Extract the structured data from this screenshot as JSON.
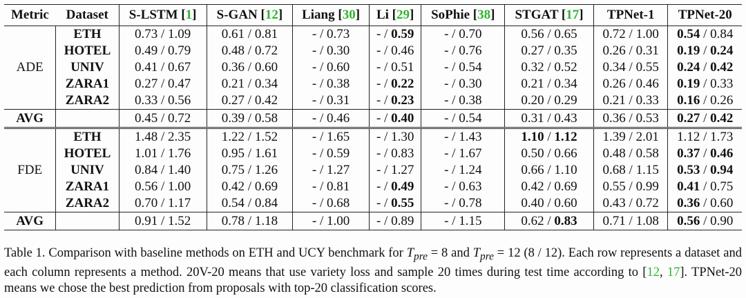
{
  "headers": [
    {
      "text": "Metric"
    },
    {
      "text": "Dataset"
    },
    {
      "text": "S-LSTM [",
      "ref": "1",
      "after": "]"
    },
    {
      "text": "S-GAN [",
      "ref": "12",
      "after": "]"
    },
    {
      "text": "Liang [",
      "ref": "30",
      "after": "]"
    },
    {
      "text": "Li [",
      "ref": "29",
      "after": "]"
    },
    {
      "text": "SoPhie [",
      "ref": "38",
      "after": "]"
    },
    {
      "text": "STGAT [",
      "ref": "17",
      "after": "]"
    },
    {
      "text": "TPNet-1"
    },
    {
      "text": "TPNet-20"
    }
  ],
  "groups": [
    {
      "metric": "ADE",
      "rows": [
        {
          "dataset": "ETH",
          "cells": [
            {
              "a": "0.73",
              "b": "1.09"
            },
            {
              "a": "0.61",
              "b": "0.81"
            },
            {
              "a": "-",
              "b": "0.73"
            },
            {
              "a": "-",
              "b": "0.59",
              "bb": true
            },
            {
              "a": "-",
              "b": "0.70"
            },
            {
              "a": "0.56",
              "b": "0.65"
            },
            {
              "a": "0.72",
              "b": "1.00"
            },
            {
              "a": "0.54",
              "b": "0.84",
              "ab": true
            }
          ]
        },
        {
          "dataset": "HOTEL",
          "cells": [
            {
              "a": "0.49",
              "b": "0.79"
            },
            {
              "a": "0.48",
              "b": "0.72"
            },
            {
              "a": "-",
              "b": "0.30"
            },
            {
              "a": "-",
              "b": "0.46"
            },
            {
              "a": "-",
              "b": "0.76"
            },
            {
              "a": "0.27",
              "b": "0.35"
            },
            {
              "a": "0.26",
              "b": "0.31"
            },
            {
              "a": "0.19",
              "b": "0.24",
              "ab": true,
              "bb": true
            }
          ]
        },
        {
          "dataset": "UNIV",
          "cells": [
            {
              "a": "0.41",
              "b": "0.67"
            },
            {
              "a": "0.36",
              "b": "0.60"
            },
            {
              "a": "-",
              "b": "0.60"
            },
            {
              "a": "-",
              "b": "0.51"
            },
            {
              "a": "-",
              "b": "0.54"
            },
            {
              "a": "0.32",
              "b": "0.52"
            },
            {
              "a": "0.34",
              "b": "0.55"
            },
            {
              "a": "0.24",
              "b": "0.42",
              "ab": true,
              "bb": true
            }
          ]
        },
        {
          "dataset": "ZARA1",
          "cells": [
            {
              "a": "0.27",
              "b": "0.47"
            },
            {
              "a": "0.21",
              "b": "0.34"
            },
            {
              "a": "-",
              "b": "0.38"
            },
            {
              "a": "-",
              "b": "0.22",
              "bb": true
            },
            {
              "a": "-",
              "b": "0.30"
            },
            {
              "a": "0.21",
              "b": "0.34"
            },
            {
              "a": "0.26",
              "b": "0.46"
            },
            {
              "a": "0.19",
              "b": "0.33",
              "ab": true
            }
          ]
        },
        {
          "dataset": "ZARA2",
          "cells": [
            {
              "a": "0.33",
              "b": "0.56"
            },
            {
              "a": "0.27",
              "b": "0.42"
            },
            {
              "a": "-",
              "b": "0.31"
            },
            {
              "a": "-",
              "b": "0.23",
              "bb": true
            },
            {
              "a": "-",
              "b": "0.38"
            },
            {
              "a": "0.20",
              "b": "0.29"
            },
            {
              "a": "0.21",
              "b": "0.33"
            },
            {
              "a": "0.16",
              "b": "0.26",
              "ab": true
            }
          ]
        }
      ],
      "avg": {
        "label": "AVG",
        "cells": [
          {
            "a": "0.45",
            "b": "0.72"
          },
          {
            "a": "0.39",
            "b": "0.58"
          },
          {
            "a": "-",
            "b": "0.46"
          },
          {
            "a": "-",
            "b": "0.40",
            "bb": true
          },
          {
            "a": "-",
            "b": "0.54"
          },
          {
            "a": "0.31",
            "b": "0.43"
          },
          {
            "a": "0.36",
            "b": "0.53"
          },
          {
            "a": "0.27",
            "b": "0.42",
            "ab": true,
            "bb": true
          }
        ]
      }
    },
    {
      "metric": "FDE",
      "rows": [
        {
          "dataset": "ETH",
          "cells": [
            {
              "a": "1.48",
              "b": "2.35"
            },
            {
              "a": "1.22",
              "b": "1.52"
            },
            {
              "a": "-",
              "b": "1.65"
            },
            {
              "a": "-",
              "b": "1.30"
            },
            {
              "a": "-",
              "b": "1.43"
            },
            {
              "a": "1.10",
              "b": "1.12",
              "ab": true,
              "bb": true
            },
            {
              "a": "1.39",
              "b": "2.01"
            },
            {
              "a": "1.12",
              "b": "1.73"
            }
          ]
        },
        {
          "dataset": "HOTEL",
          "cells": [
            {
              "a": "1.01",
              "b": "1.76"
            },
            {
              "a": "0.95",
              "b": "1.61"
            },
            {
              "a": "-",
              "b": "0.59"
            },
            {
              "a": "-",
              "b": "0.83"
            },
            {
              "a": "-",
              "b": "1.67"
            },
            {
              "a": "0.50",
              "b": "0.66"
            },
            {
              "a": "0.48",
              "b": "0.58"
            },
            {
              "a": "0.37",
              "b": "0.46",
              "ab": true,
              "bb": true
            }
          ]
        },
        {
          "dataset": "UNIV",
          "cells": [
            {
              "a": "0.84",
              "b": "1.40"
            },
            {
              "a": "0.75",
              "b": "1.26"
            },
            {
              "a": "-",
              "b": "1.27"
            },
            {
              "a": "-",
              "b": "1.27"
            },
            {
              "a": "-",
              "b": "1.24"
            },
            {
              "a": "0.66",
              "b": "1.10"
            },
            {
              "a": "0.68",
              "b": "1.15"
            },
            {
              "a": "0.53",
              "b": "0.94",
              "ab": true,
              "bb": true
            }
          ]
        },
        {
          "dataset": "ZARA1",
          "cells": [
            {
              "a": "0.56",
              "b": "1.00"
            },
            {
              "a": "0.42",
              "b": "0.69"
            },
            {
              "a": "-",
              "b": "0.81"
            },
            {
              "a": "-",
              "b": "0.49",
              "bb": true
            },
            {
              "a": "-",
              "b": "0.63"
            },
            {
              "a": "0.42",
              "b": "0.69"
            },
            {
              "a": "0.55",
              "b": "0.99"
            },
            {
              "a": "0.41",
              "b": "0.75",
              "ab": true
            }
          ]
        },
        {
          "dataset": "ZARA2",
          "cells": [
            {
              "a": "0.70",
              "b": "1.17"
            },
            {
              "a": "0.54",
              "b": "0.84"
            },
            {
              "a": "-",
              "b": "0.68"
            },
            {
              "a": "-",
              "b": "0.55",
              "bb": true
            },
            {
              "a": "-",
              "b": "0.78"
            },
            {
              "a": "0.40",
              "b": "0.60"
            },
            {
              "a": "0.43",
              "b": "0.72"
            },
            {
              "a": "0.36",
              "b": "0.60",
              "ab": true
            }
          ]
        }
      ],
      "avg": {
        "label": "AVG",
        "cells": [
          {
            "a": "0.91",
            "b": "1.52"
          },
          {
            "a": "0.78",
            "b": "1.18"
          },
          {
            "a": "-",
            "b": "1.00"
          },
          {
            "a": "-",
            "b": "0.89"
          },
          {
            "a": "-",
            "b": "1.15"
          },
          {
            "a": "0.62",
            "b": "0.83",
            "bb": true
          },
          {
            "a": "0.71",
            "b": "1.08"
          },
          {
            "a": "0.56",
            "b": "0.90",
            "ab": true
          }
        ]
      }
    }
  ],
  "caption": {
    "p1": "Table 1. Comparison with baseline methods on ETH and UCY benchmark for ",
    "var": "T",
    "sub": "pre",
    "eq1": " = 8 and ",
    "eq2": " = 12 (8 / 12). Each row represents a dataset and each column represents a method. 20V-20 means that use variety loss and sample 20 times during test time according to [",
    "ref1": "12",
    "sep": ", ",
    "ref2": "17",
    "p2": "]. TPNet-20 means we chose the best prediction from proposals with top-20 classification scores."
  },
  "colors": {
    "ref": "#2db52d",
    "text": "#111111",
    "rule": "#222222"
  }
}
